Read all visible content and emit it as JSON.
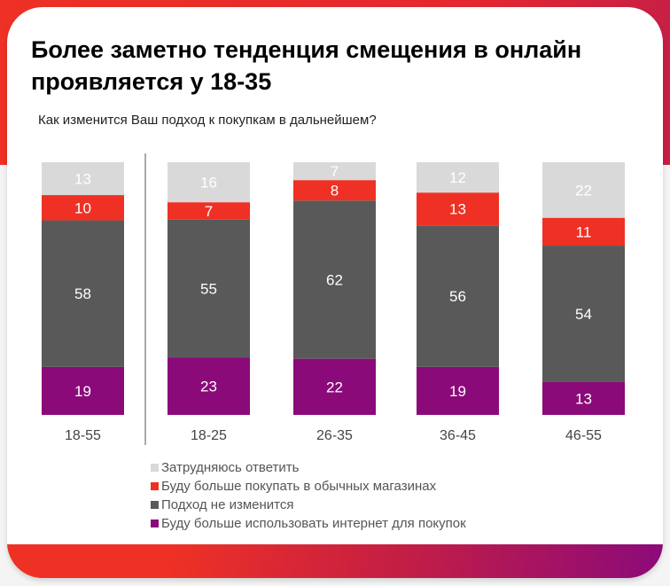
{
  "title": "Более заметно тенденция смещения в онлайн проявляется у 18-35",
  "chart_data": {
    "type": "bar",
    "stacked": true,
    "title": "Более заметно тенденция смещения в онлайн проявляется у 18-35",
    "subtitle": "Как изменится Ваш подход к покупкам в дальнейшем?",
    "categories": [
      "18-55",
      "18-25",
      "26-35",
      "36-45",
      "46-55"
    ],
    "series": [
      {
        "name": "Буду больше использовать интернет для покупок",
        "color": "#8b0a7a",
        "values": [
          19,
          23,
          22,
          19,
          13
        ]
      },
      {
        "name": "Подход не изменится",
        "color": "#595959",
        "values": [
          58,
          55,
          62,
          56,
          54
        ]
      },
      {
        "name": "Буду больше покупать в обычных магазинах",
        "color": "#ee3124",
        "values": [
          10,
          7,
          8,
          13,
          11
        ]
      },
      {
        "name": "Затрудняюсь ответить",
        "color": "#d9d9d9",
        "values": [
          13,
          16,
          7,
          12,
          22
        ]
      }
    ],
    "legend_order": [
      3,
      2,
      1,
      0
    ],
    "legend_position": "bottom",
    "ylim": [
      0,
      100
    ],
    "grid": false
  }
}
